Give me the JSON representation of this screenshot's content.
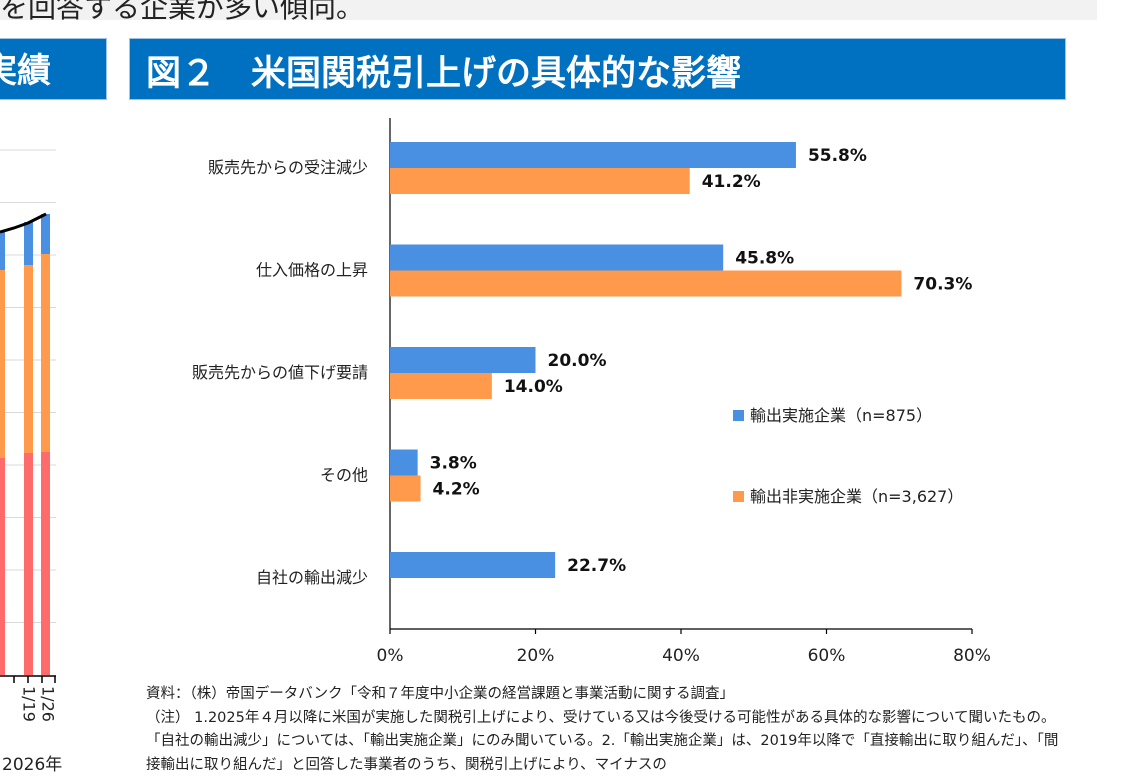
{
  "top_fragment": "を回答する企業が多い傾向。",
  "left_panel": {
    "header_fragment": "実績",
    "x_ticks": [
      "1/19",
      "1/26"
    ],
    "year": "2026年"
  },
  "chart_data": {
    "type": "bar",
    "orientation": "horizontal",
    "title": "図２　米国関税引上げの具体的な影響",
    "categories": [
      "販売先からの受注減少",
      "仕入価格の上昇",
      "販売先からの値下げ要請",
      "その他",
      "自社の輸出減少"
    ],
    "series": [
      {
        "name": "輸出実施企業（n=875）",
        "color": "#4a90e2",
        "values": [
          55.8,
          45.8,
          20.0,
          3.8,
          22.7
        ],
        "labels": [
          "55.8%",
          "45.8%",
          "20.0%",
          "3.8%",
          "22.7%"
        ]
      },
      {
        "name": "輸出非実施企業（n=3,627）",
        "color": "#ff9a4d",
        "values": [
          41.2,
          70.3,
          14.0,
          4.2,
          null
        ],
        "labels": [
          "41.2%",
          "70.3%",
          "14.0%",
          "4.2%",
          ""
        ]
      }
    ],
    "xlim": [
      0,
      80
    ],
    "x_ticks": [
      "0%",
      "20%",
      "40%",
      "60%",
      "80%"
    ],
    "legend_position": "right"
  },
  "notes": [
    "資料：（株）帝国データバンク「令和７年度中小企業の経営課題と事業活動に関する調査」",
    "（注） 1.2025年４月以降に米国が実施した関税引上げにより、受けている又は今後受ける可能性がある具体的な影響について聞いたもの。「自社の輸出減少」については、「輸出実施企業」にのみ聞いている。2.「輸出実施企業」は、2019年以降で「直接輸出に取り組んだ」、「間接輸出に取り組んだ」と回答した事業者のうち、関税引上げにより、マイナスの"
  ]
}
